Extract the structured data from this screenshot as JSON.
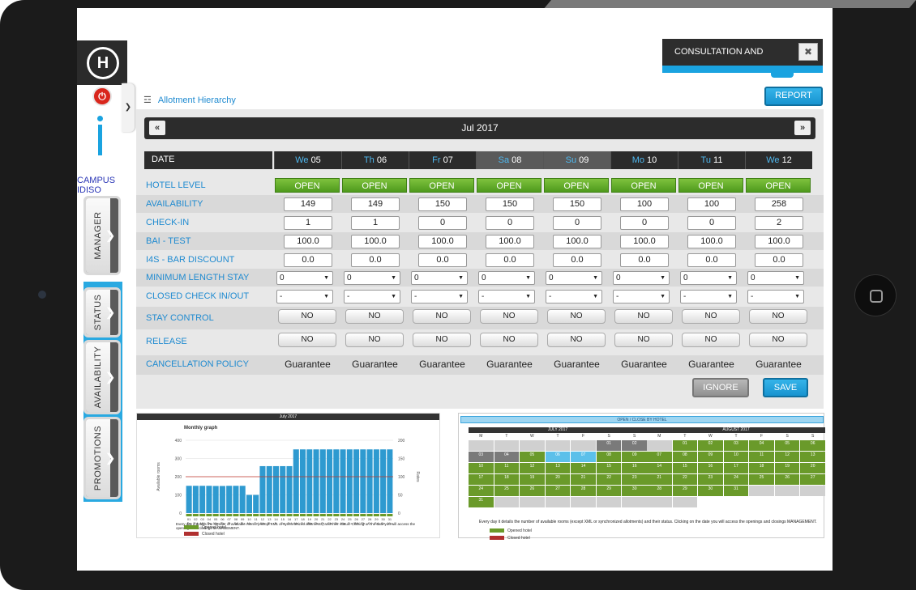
{
  "sidebar": {
    "logo": "H",
    "campus": "CAMPUS IDISO",
    "tabs": [
      "MANAGER",
      "STATUS",
      "AVAILABILITY",
      "PROMOTIONS"
    ]
  },
  "header": {
    "consultation": "CONSULTATION AND",
    "report_label": "REPORT",
    "hierarchy_link": "Allotment Hierarchy"
  },
  "calendar": {
    "month": "Jul 2017",
    "date_label": "DATE",
    "days": [
      {
        "dow": "We",
        "num": "05"
      },
      {
        "dow": "Th",
        "num": "06"
      },
      {
        "dow": "Fr",
        "num": "07"
      },
      {
        "dow": "Sa",
        "num": "08"
      },
      {
        "dow": "Su",
        "num": "09"
      },
      {
        "dow": "Mo",
        "num": "10"
      },
      {
        "dow": "Tu",
        "num": "11"
      },
      {
        "dow": "We",
        "num": "12"
      }
    ]
  },
  "rows": {
    "hotel_level": {
      "label": "HOTEL LEVEL",
      "values": [
        "OPEN",
        "OPEN",
        "OPEN",
        "OPEN",
        "OPEN",
        "OPEN",
        "OPEN",
        "OPEN"
      ]
    },
    "availability": {
      "label": "AVAILABILITY",
      "values": [
        "149",
        "149",
        "150",
        "150",
        "150",
        "100",
        "100",
        "258"
      ]
    },
    "check_in": {
      "label": "CHECK-IN",
      "values": [
        "1",
        "1",
        "0",
        "0",
        "0",
        "0",
        "0",
        "2"
      ]
    },
    "bai_test": {
      "label": "BAI - TEST",
      "values": [
        "100.0",
        "100.0",
        "100.0",
        "100.0",
        "100.0",
        "100.0",
        "100.0",
        "100.0"
      ]
    },
    "bar_discount": {
      "label": "I4S - BAR DISCOUNT",
      "values": [
        "0.0",
        "0.0",
        "0.0",
        "0.0",
        "0.0",
        "0.0",
        "0.0",
        "0.0"
      ]
    },
    "min_stay": {
      "label": "MINIMUM LENGTH STAY",
      "values": [
        "0",
        "0",
        "0",
        "0",
        "0",
        "0",
        "0",
        "0"
      ]
    },
    "closed_check": {
      "label": "CLOSED CHECK IN/OUT",
      "values": [
        "-",
        "-",
        "-",
        "-",
        "-",
        "-",
        "-",
        "-"
      ]
    },
    "stay_control": {
      "label": "STAY CONTROL",
      "values": [
        "NO",
        "NO",
        "NO",
        "NO",
        "NO",
        "NO",
        "NO",
        "NO"
      ]
    },
    "release": {
      "label": "RELEASE",
      "values": [
        "NO",
        "NO",
        "NO",
        "NO",
        "NO",
        "NO",
        "NO",
        "NO"
      ]
    },
    "cancellation": {
      "label": "CANCELLATION POLICY",
      "values": [
        "Guarantee",
        "Guarantee",
        "Guarantee",
        "Guarantee",
        "Guarantee",
        "Guarantee",
        "Guarantee",
        "Guarantee"
      ]
    }
  },
  "actions": {
    "ignore": "IGNORE",
    "save": "SAVE"
  },
  "graph_panel": {
    "header": "July 2017",
    "title": "Monthly graph",
    "note": "Every day it details the number of available rooms (except XML or synchronized allotments) and their status. Clicking on the date you will access the openings and closings MANAGEMENT.",
    "legend_open": "Opened hotel",
    "legend_closed": "Closed hotel"
  },
  "chart_data": {
    "type": "bar",
    "title": "Monthly graph",
    "ylabel": "Available rooms",
    "y2label": "Rates",
    "ylim": [
      0,
      400
    ],
    "y2lim": [
      0,
      200
    ],
    "categories": [
      "Sa",
      "Su",
      "Mo",
      "Tu",
      "We",
      "Th",
      "Fr",
      "Sa",
      "Su",
      "Mo",
      "Tu",
      "We",
      "Th",
      "Fr",
      "Sa",
      "Su",
      "Mo",
      "Tu",
      "We",
      "Th",
      "Fr",
      "Sa",
      "Su",
      "Mo",
      "Tu",
      "We",
      "Th",
      "Fr",
      "Sa",
      "Su",
      "Mo"
    ],
    "day_numbers": [
      "01",
      "02",
      "03",
      "04",
      "05",
      "06",
      "07",
      "08",
      "09",
      "10",
      "11",
      "12",
      "13",
      "14",
      "15",
      "16",
      "17",
      "18",
      "19",
      "20",
      "21",
      "22",
      "23",
      "24",
      "25",
      "26",
      "27",
      "28",
      "29",
      "30",
      "31"
    ],
    "values": [
      150,
      150,
      150,
      150,
      149,
      149,
      150,
      150,
      150,
      100,
      100,
      258,
      258,
      258,
      258,
      258,
      350,
      350,
      350,
      350,
      350,
      350,
      350,
      350,
      350,
      350,
      350,
      350,
      350,
      350,
      350
    ],
    "rate_line": 100,
    "colors": {
      "bars": "#2e9ad0",
      "line": "#c0392b"
    }
  },
  "calendar_panel": {
    "header": "OPEN / CLOSE BY HOTEL",
    "months": [
      "JULY 2017",
      "AUGUST 2017"
    ],
    "weekdays": [
      "M",
      "T",
      "W",
      "T",
      "F",
      "S",
      "S"
    ],
    "july": [
      "",
      "",
      "",
      "",
      "",
      "01",
      "02",
      "03",
      "04",
      "05",
      "06",
      "07",
      "08",
      "09",
      "10",
      "11",
      "12",
      "13",
      "14",
      "15",
      "16",
      "17",
      "18",
      "19",
      "20",
      "21",
      "22",
      "23",
      "24",
      "25",
      "26",
      "27",
      "28",
      "29",
      "30",
      "31",
      "",
      "",
      "",
      "",
      "",
      ""
    ],
    "august": [
      "",
      "01",
      "02",
      "03",
      "04",
      "05",
      "06",
      "07",
      "08",
      "09",
      "10",
      "11",
      "12",
      "13",
      "14",
      "15",
      "16",
      "17",
      "18",
      "19",
      "20",
      "21",
      "22",
      "23",
      "24",
      "25",
      "26",
      "27",
      "28",
      "29",
      "30",
      "31",
      "",
      "",
      "",
      "",
      ""
    ],
    "note": "Every day it details the number of available rooms (except XML or synchronized allotments) and their status. Clicking on the date you will access the openings and closings MANAGEMENT.",
    "legend_open": "Opened hotel",
    "legend_closed": "Closed hotel"
  }
}
